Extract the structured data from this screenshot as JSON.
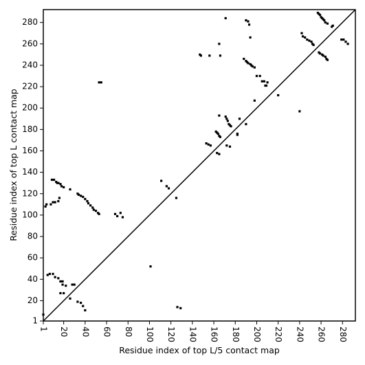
{
  "chart_data": {
    "type": "scatter",
    "xlabel": "Residue index of top L/5 contact map",
    "ylabel": "Residue index of top L contact map",
    "xlim": [
      1,
      292
    ],
    "ylim": [
      1,
      292
    ],
    "xticks": [
      1,
      20,
      40,
      60,
      80,
      100,
      120,
      140,
      160,
      180,
      200,
      220,
      240,
      260,
      280
    ],
    "yticks": [
      1,
      20,
      40,
      60,
      80,
      100,
      120,
      140,
      160,
      180,
      200,
      220,
      240,
      260,
      280
    ],
    "diagonal": true,
    "color": "#000000",
    "x": [
      9,
      11,
      13,
      14,
      15,
      17,
      18,
      20,
      3,
      4,
      8,
      10,
      12,
      15,
      16,
      26,
      33,
      34,
      36,
      38,
      40,
      42,
      43,
      45,
      47,
      48,
      50,
      52,
      53,
      68,
      70,
      73,
      75,
      111,
      116,
      118,
      125,
      147,
      148,
      156,
      165,
      166,
      171,
      190,
      192,
      193,
      194,
      188,
      190,
      191,
      192,
      194,
      195,
      196,
      198,
      200,
      203,
      205,
      207,
      208,
      209,
      210,
      53,
      55,
      270,
      271,
      153,
      155,
      157,
      162,
      163,
      164,
      165,
      166,
      172,
      175,
      242,
      243,
      245,
      247,
      249,
      251,
      252,
      253,
      257,
      258,
      259,
      260,
      261,
      262,
      263,
      264,
      266,
      1,
      5,
      7,
      10,
      12,
      15,
      17,
      19,
      19,
      22,
      17,
      20,
      26,
      28,
      30,
      33,
      36,
      38,
      40,
      101,
      126,
      129,
      165,
      163,
      165,
      171,
      172,
      173,
      174,
      175,
      176,
      182,
      182,
      184,
      190,
      198,
      220,
      240,
      258,
      259,
      261,
      262,
      264,
      265,
      266,
      279,
      281,
      283,
      285
    ],
    "values": [
      133,
      133,
      131,
      130,
      130,
      129,
      127,
      126,
      108,
      110,
      110,
      112,
      112,
      113,
      116,
      124,
      120,
      119,
      118,
      117,
      115,
      113,
      111,
      109,
      107,
      105,
      104,
      102,
      101,
      101,
      99,
      102,
      98,
      132,
      127,
      125,
      116,
      250,
      249,
      249,
      260,
      249,
      284,
      282,
      281,
      278,
      266,
      246,
      244,
      243,
      242,
      241,
      240,
      239,
      238,
      230,
      230,
      225,
      225,
      221,
      221,
      224,
      224,
      224,
      276,
      277,
      167,
      166,
      165,
      178,
      177,
      176,
      174,
      173,
      165,
      164,
      270,
      267,
      266,
      264,
      263,
      262,
      260,
      259,
      289,
      288,
      287,
      285,
      284,
      283,
      282,
      280,
      279,
      7,
      44,
      45,
      45,
      42,
      41,
      38,
      38,
      35,
      34,
      27,
      27,
      22,
      35,
      35,
      19,
      18,
      15,
      11,
      52,
      14,
      13,
      157,
      158,
      193,
      192,
      190,
      188,
      185,
      184,
      183,
      176,
      175,
      190,
      185,
      207,
      212,
      197,
      252,
      251,
      250,
      249,
      248,
      246,
      245,
      264,
      264,
      262,
      260
    ]
  }
}
